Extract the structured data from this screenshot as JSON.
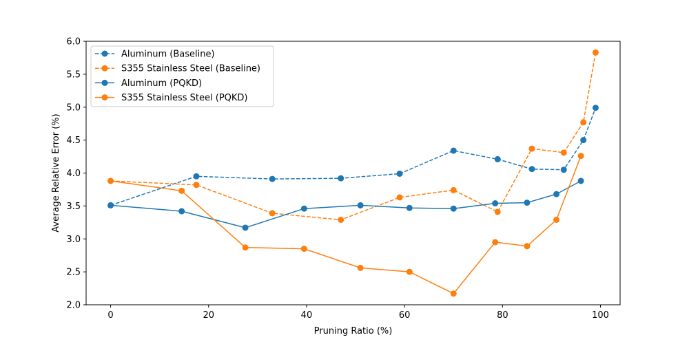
{
  "chart_data": {
    "type": "line",
    "title": "",
    "xlabel": "Pruning Ratio (%)",
    "ylabel": "Average Relative Error (%)",
    "xlim": [
      -5,
      104
    ],
    "ylim": [
      2.0,
      6.0
    ],
    "xticks": [
      0,
      20,
      40,
      60,
      80,
      100
    ],
    "yticks": [
      2.0,
      2.5,
      3.0,
      3.5,
      4.0,
      4.5,
      5.0,
      5.5,
      6.0
    ],
    "xtick_labels": [
      "0",
      "20",
      "40",
      "60",
      "80",
      "100"
    ],
    "ytick_labels": [
      "2.0",
      "2.5",
      "3.0",
      "3.5",
      "4.0",
      "4.5",
      "5.0",
      "5.5",
      "6.0"
    ],
    "grid": false,
    "legend_position": "top-left",
    "series": [
      {
        "name": "Aluminum (Baseline)",
        "color": "#1f77b4",
        "linestyle": "dashed",
        "marker": "circle",
        "x": [
          0,
          17.5,
          33,
          47,
          59,
          70,
          79,
          86,
          92.5,
          96.5,
          99
        ],
        "y": [
          3.51,
          3.95,
          3.91,
          3.92,
          3.99,
          4.34,
          4.21,
          4.06,
          4.05,
          4.5,
          4.99
        ]
      },
      {
        "name": "S355 Stainless Steel (Baseline)",
        "color": "#ff7f0e",
        "linestyle": "dashed",
        "marker": "circle",
        "x": [
          0,
          17.5,
          33,
          47,
          59,
          70,
          79,
          86,
          92.5,
          96.5,
          99
        ],
        "y": [
          3.88,
          3.82,
          3.39,
          3.29,
          3.63,
          3.74,
          3.41,
          4.37,
          4.31,
          4.77,
          5.83
        ]
      },
      {
        "name": "Aluminum (PQKD)",
        "color": "#1f77b4",
        "linestyle": "solid",
        "marker": "circle",
        "x": [
          0,
          14.5,
          27.5,
          39.5,
          51,
          61,
          70,
          78.5,
          85,
          91,
          96
        ],
        "y": [
          3.51,
          3.42,
          3.17,
          3.46,
          3.51,
          3.47,
          3.46,
          3.54,
          3.55,
          3.68,
          3.88
        ]
      },
      {
        "name": "S355 Stainless Steel (PQKD)",
        "color": "#ff7f0e",
        "linestyle": "solid",
        "marker": "circle",
        "x": [
          0,
          14.5,
          27.5,
          39.5,
          51,
          61,
          70,
          78.5,
          85,
          91,
          96
        ],
        "y": [
          3.88,
          3.73,
          2.87,
          2.85,
          2.56,
          2.5,
          2.17,
          2.95,
          2.89,
          3.29,
          4.26
        ]
      }
    ]
  }
}
